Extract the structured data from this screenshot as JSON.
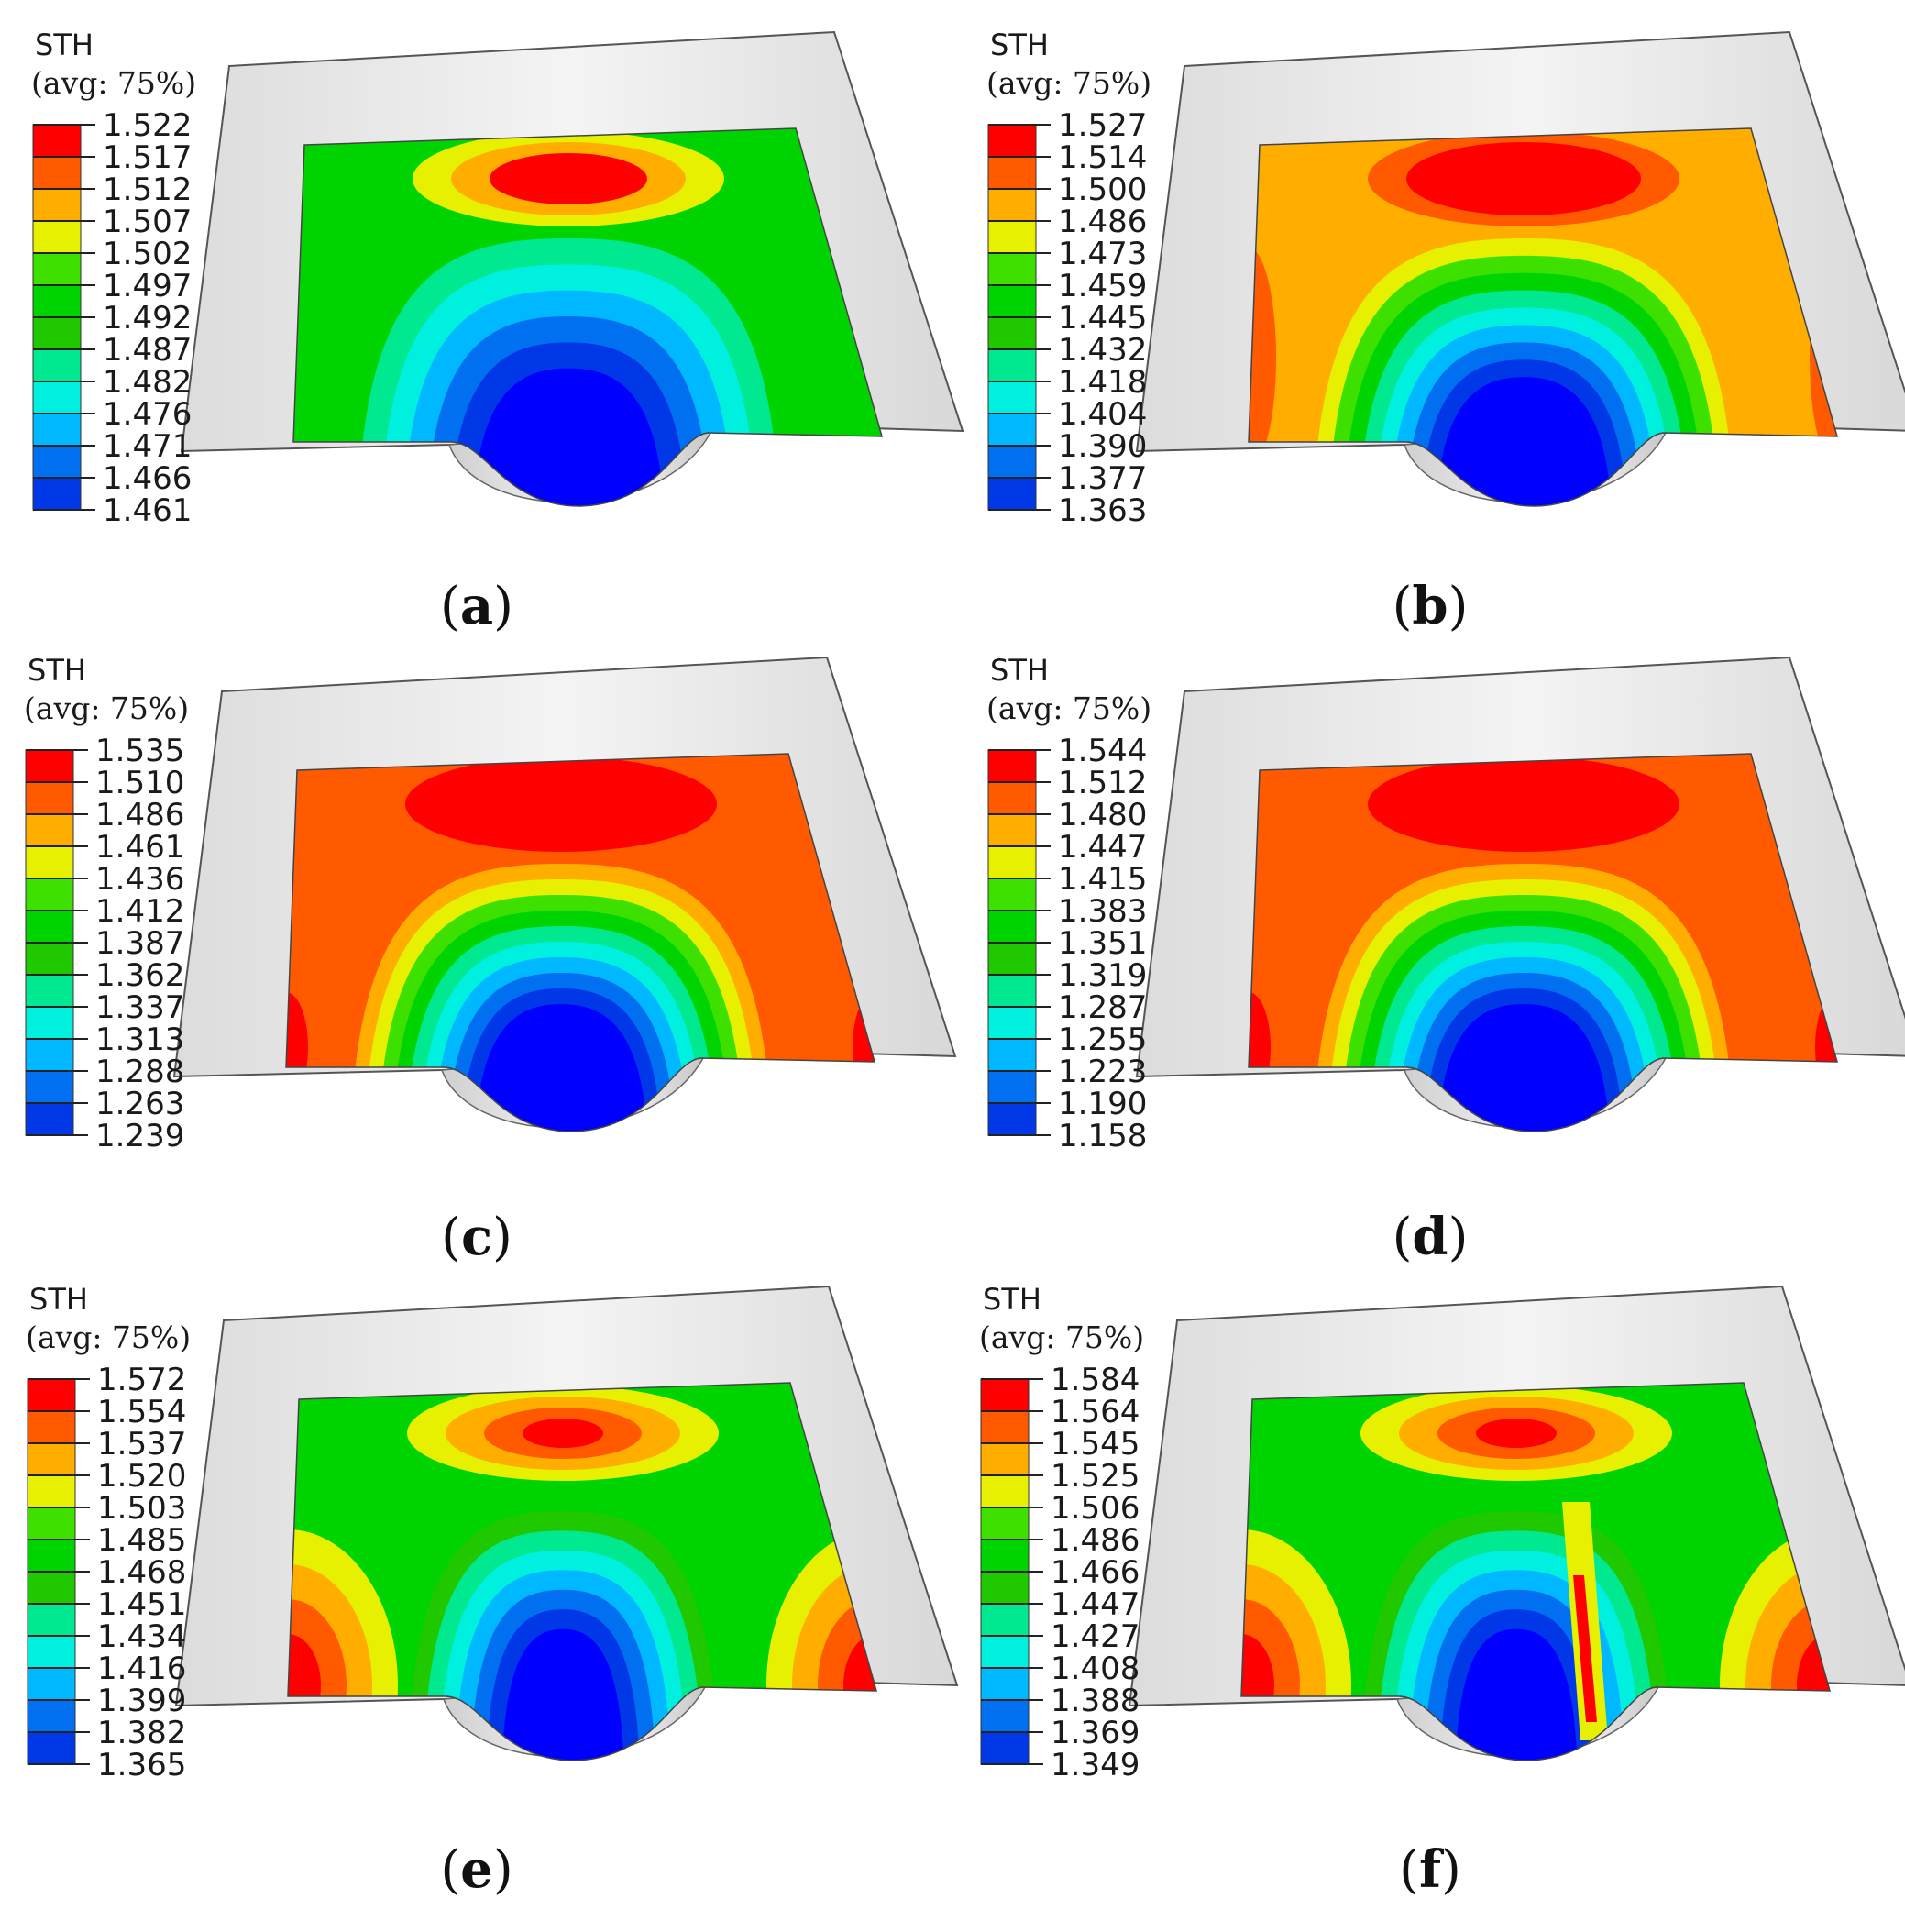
{
  "figure": {
    "panels": [
      {
        "id": "a",
        "caption_prefix": "(",
        "caption_letter": "a",
        "caption_suffix": ")",
        "legend_title": "STH",
        "legend_subtitle": "(avg: 75%)",
        "ticks": [
          "1.522",
          "1.517",
          "1.512",
          "1.507",
          "1.502",
          "1.497",
          "1.492",
          "1.487",
          "1.482",
          "1.476",
          "1.471",
          "1.466",
          "1.461"
        ],
        "pattern": "low-gradient"
      },
      {
        "id": "b",
        "caption_prefix": "(",
        "caption_letter": "b",
        "caption_suffix": ")",
        "legend_title": "STH",
        "legend_subtitle": "(avg: 75%)",
        "ticks": [
          "1.527",
          "1.514",
          "1.500",
          "1.486",
          "1.473",
          "1.459",
          "1.445",
          "1.432",
          "1.418",
          "1.404",
          "1.390",
          "1.377",
          "1.363"
        ],
        "pattern": "orange-dome"
      },
      {
        "id": "c",
        "caption_prefix": "(",
        "caption_letter": "c",
        "caption_suffix": ")",
        "legend_title": "STH",
        "legend_subtitle": "(avg: 75%)",
        "ticks": [
          "1.535",
          "1.510",
          "1.486",
          "1.461",
          "1.436",
          "1.412",
          "1.387",
          "1.362",
          "1.337",
          "1.313",
          "1.288",
          "1.263",
          "1.239"
        ],
        "pattern": "red-dome"
      },
      {
        "id": "d",
        "caption_prefix": "(",
        "caption_letter": "d",
        "caption_suffix": ")",
        "legend_title": "STH",
        "legend_subtitle": "(avg: 75%)",
        "ticks": [
          "1.544",
          "1.512",
          "1.480",
          "1.447",
          "1.415",
          "1.383",
          "1.351",
          "1.319",
          "1.287",
          "1.255",
          "1.223",
          "1.190",
          "1.158"
        ],
        "pattern": "red-dome"
      },
      {
        "id": "e",
        "caption_prefix": "(",
        "caption_letter": "e",
        "caption_suffix": ")",
        "legend_title": "STH",
        "legend_subtitle": "(avg: 75%)",
        "ticks": [
          "1.572",
          "1.554",
          "1.537",
          "1.520",
          "1.503",
          "1.485",
          "1.468",
          "1.451",
          "1.434",
          "1.416",
          "1.399",
          "1.382",
          "1.365"
        ],
        "pattern": "green-narrow"
      },
      {
        "id": "f",
        "caption_prefix": "(",
        "caption_letter": "f",
        "caption_suffix": ")",
        "legend_title": "STH",
        "legend_subtitle": "(avg: 75%)",
        "ticks": [
          "1.584",
          "1.564",
          "1.545",
          "1.525",
          "1.506",
          "1.486",
          "1.466",
          "1.447",
          "1.427",
          "1.408",
          "1.388",
          "1.369",
          "1.349"
        ],
        "pattern": "green-narrow-streak"
      }
    ],
    "colormap": [
      "#ff0000",
      "#ff5a00",
      "#ffae00",
      "#e6f000",
      "#3ee000",
      "#00d400",
      "#20c800",
      "#00e890",
      "#00f0e0",
      "#00b8ff",
      "#0070f0",
      "#0038e8",
      "#0000ff"
    ],
    "sheet_color": "#e6e6e6",
    "sheet_edge_color": "#555555",
    "punch_color": "#f2f2f2"
  }
}
